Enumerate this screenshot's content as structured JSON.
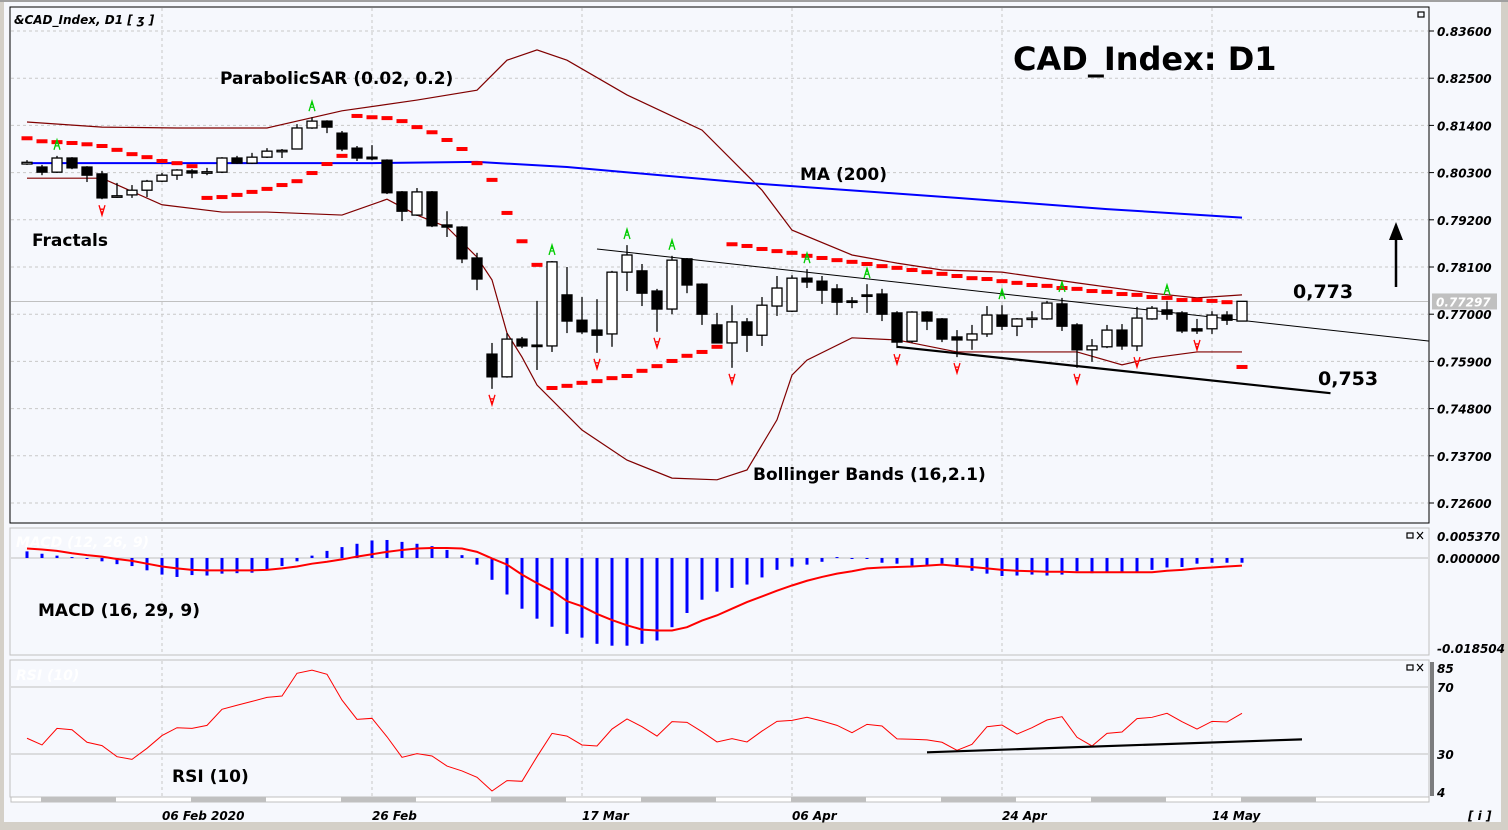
{
  "window": {
    "symbol_label": "&CAD_Index, D1 [ ʒ ]",
    "info_button": "[ i ]",
    "panel_icons": [
      "maximize-icon",
      "close-icon"
    ]
  },
  "annotations": {
    "title": "CAD_Index: D1",
    "parabolic_sar": "ParabolicSAR (0.02, 0.2)",
    "fractals": "Fractals",
    "ma": "MA (200)",
    "bollinger": "Bollinger Bands (16,2.1)",
    "resistance_level": "0,773",
    "support_level": "0,753",
    "macd": "MACD (16, 29, 9)",
    "macd_faint": "MACD (12, 26, 9)",
    "rsi": "RSI (10)",
    "rsi_faint": "RSI (10)",
    "forecast_arrow": "up-arrow"
  },
  "colors": {
    "bollinger": "#800000",
    "ma": "#0000ff",
    "sar": "#ff0000",
    "fractal_up": "#00cc00",
    "fractal_down": "#ff0000",
    "macd_hist": "#0000ff",
    "macd_signal": "#ff0000",
    "rsi": "#ff0000",
    "current_price_bg": "#c0c0c0"
  },
  "chart_data": {
    "type": "candlestick",
    "title": "CAD_Index: D1",
    "current_price": 0.77297,
    "current_price_label": "0.77297",
    "ylim": [
      0.7205,
      0.8398
    ],
    "yticks": [
      "0.83600",
      "0.82500",
      "0.81400",
      "0.80300",
      "0.79200",
      "0.78100",
      "0.77000",
      "0.75900",
      "0.74800",
      "0.73700",
      "0.72600"
    ],
    "xticks": [
      {
        "date": "2020-02-06",
        "label": "06 Feb 2020"
      },
      {
        "date": "2020-02-26",
        "label": "26 Feb"
      },
      {
        "date": "2020-03-17",
        "label": "17 Mar"
      },
      {
        "date": "2020-04-06",
        "label": "06 Apr"
      },
      {
        "date": "2020-04-24",
        "label": "24 Apr"
      },
      {
        "date": "2020-05-14",
        "label": "14 May"
      }
    ],
    "candles_format": [
      "date",
      "open",
      "high",
      "low",
      "close"
    ],
    "candles": [
      [
        "2020-01-24",
        0.805,
        0.8059,
        0.8048,
        0.8054
      ],
      [
        "2020-01-27",
        0.8043,
        0.8048,
        0.8024,
        0.8031
      ],
      [
        "2020-01-28",
        0.8031,
        0.8069,
        0.8029,
        0.8064
      ],
      [
        "2020-01-29",
        0.8064,
        0.8066,
        0.8038,
        0.8041
      ],
      [
        "2020-01-30",
        0.8043,
        0.8045,
        0.8008,
        0.8024
      ],
      [
        "2020-01-31",
        0.8027,
        0.8034,
        0.7968,
        0.7971
      ],
      [
        "2020-02-03",
        0.7974,
        0.8006,
        0.7971,
        0.7976
      ],
      [
        "2020-02-04",
        0.7978,
        0.8001,
        0.7971,
        0.7989
      ],
      [
        "2020-02-05",
        0.7989,
        0.8013,
        0.7973,
        0.801
      ],
      [
        "2020-02-06",
        0.801,
        0.8029,
        0.8008,
        0.8024
      ],
      [
        "2020-02-07",
        0.8024,
        0.8038,
        0.8013,
        0.8036
      ],
      [
        "2020-02-10",
        0.8034,
        0.8038,
        0.8017,
        0.8029
      ],
      [
        "2020-02-11",
        0.8031,
        0.8041,
        0.8024,
        0.8032
      ],
      [
        "2020-02-12",
        0.8031,
        0.8066,
        0.8029,
        0.8064
      ],
      [
        "2020-02-13",
        0.8064,
        0.8069,
        0.805,
        0.8052
      ],
      [
        "2020-02-14",
        0.8052,
        0.8076,
        0.805,
        0.8066
      ],
      [
        "2020-02-17",
        0.8066,
        0.8087,
        0.8064,
        0.808
      ],
      [
        "2020-02-18",
        0.808,
        0.8085,
        0.8064,
        0.8082
      ],
      [
        "2020-02-19",
        0.8085,
        0.8143,
        0.8085,
        0.8134
      ],
      [
        "2020-02-20",
        0.8134,
        0.8159,
        0.8132,
        0.815
      ],
      [
        "2020-02-21",
        0.815,
        0.8152,
        0.8122,
        0.8136
      ],
      [
        "2020-02-24",
        0.8122,
        0.8127,
        0.808,
        0.8085
      ],
      [
        "2020-02-25",
        0.8087,
        0.8092,
        0.8057,
        0.8064
      ],
      [
        "2020-02-26",
        0.8066,
        0.8094,
        0.8059,
        0.8062
      ],
      [
        "2020-02-27",
        0.8059,
        0.8061,
        0.798,
        0.7983
      ],
      [
        "2020-02-28",
        0.7985,
        0.7987,
        0.7917,
        0.794
      ],
      [
        "2020-03-02",
        0.7931,
        0.7994,
        0.7929,
        0.7985
      ],
      [
        "2020-03-03",
        0.7985,
        0.7987,
        0.7903,
        0.7906
      ],
      [
        "2020-03-04",
        0.7908,
        0.794,
        0.788,
        0.7903
      ],
      [
        "2020-03-05",
        0.7903,
        0.7905,
        0.7819,
        0.7829
      ],
      [
        "2020-03-06",
        0.7831,
        0.7843,
        0.7756,
        0.7782
      ],
      [
        "2020-03-09",
        0.7607,
        0.7633,
        0.7526,
        0.7554
      ],
      [
        "2020-03-10",
        0.7554,
        0.7656,
        0.7552,
        0.7642
      ],
      [
        "2020-03-11",
        0.7642,
        0.7647,
        0.7621,
        0.7626
      ],
      [
        "2020-03-12",
        0.7628,
        0.7731,
        0.757,
        0.7626
      ],
      [
        "2020-03-13",
        0.7626,
        0.7824,
        0.7612,
        0.7822
      ],
      [
        "2020-03-16",
        0.7745,
        0.781,
        0.7656,
        0.7684
      ],
      [
        "2020-03-17",
        0.7686,
        0.774,
        0.7654,
        0.7659
      ],
      [
        "2020-03-18",
        0.7663,
        0.7735,
        0.761,
        0.7651
      ],
      [
        "2020-03-19",
        0.7654,
        0.7801,
        0.7624,
        0.7798
      ],
      [
        "2020-03-20",
        0.7798,
        0.7861,
        0.7754,
        0.7838
      ],
      [
        "2020-03-23",
        0.7801,
        0.7817,
        0.7719,
        0.7749
      ],
      [
        "2020-03-24",
        0.7754,
        0.7759,
        0.7659,
        0.7712
      ],
      [
        "2020-03-25",
        0.7712,
        0.7836,
        0.77,
        0.7826
      ],
      [
        "2020-03-26",
        0.7829,
        0.7831,
        0.7749,
        0.7768
      ],
      [
        "2020-03-27",
        0.777,
        0.7772,
        0.7675,
        0.77
      ],
      [
        "2020-03-30",
        0.7675,
        0.7703,
        0.7633,
        0.7633
      ],
      [
        "2020-03-31",
        0.7633,
        0.7721,
        0.7575,
        0.7682
      ],
      [
        "2020-04-01",
        0.7682,
        0.7691,
        0.7612,
        0.7651
      ],
      [
        "2020-04-02",
        0.7651,
        0.774,
        0.7626,
        0.7721
      ],
      [
        "2020-04-03",
        0.7719,
        0.7789,
        0.7696,
        0.7761
      ],
      [
        "2020-04-06",
        0.7707,
        0.7791,
        0.7705,
        0.7784
      ],
      [
        "2020-04-07",
        0.7784,
        0.7805,
        0.7761,
        0.7775
      ],
      [
        "2020-04-08",
        0.7777,
        0.7789,
        0.7724,
        0.7756
      ],
      [
        "2020-04-09",
        0.7759,
        0.777,
        0.7698,
        0.7728
      ],
      [
        "2020-04-10",
        0.7731,
        0.774,
        0.7714,
        0.773
      ],
      [
        "2020-04-13",
        0.7745,
        0.777,
        0.7703,
        0.7743
      ],
      [
        "2020-04-14",
        0.7747,
        0.7759,
        0.7684,
        0.77
      ],
      [
        "2020-04-15",
        0.7703,
        0.7707,
        0.7621,
        0.7635
      ],
      [
        "2020-04-16",
        0.7637,
        0.7707,
        0.7633,
        0.7705
      ],
      [
        "2020-04-17",
        0.7705,
        0.7707,
        0.7663,
        0.7684
      ],
      [
        "2020-04-20",
        0.7689,
        0.7691,
        0.7635,
        0.7642
      ],
      [
        "2020-04-21",
        0.7647,
        0.7663,
        0.76,
        0.764
      ],
      [
        "2020-04-22",
        0.764,
        0.7675,
        0.7617,
        0.7654
      ],
      [
        "2020-04-23",
        0.7654,
        0.7719,
        0.7647,
        0.7698
      ],
      [
        "2020-04-24",
        0.7698,
        0.7721,
        0.7663,
        0.7672
      ],
      [
        "2020-04-27",
        0.7672,
        0.7691,
        0.7649,
        0.7689
      ],
      [
        "2020-04-28",
        0.7689,
        0.7707,
        0.7668,
        0.7691
      ],
      [
        "2020-04-29",
        0.7689,
        0.7731,
        0.7687,
        0.7726
      ],
      [
        "2020-04-30",
        0.7724,
        0.7738,
        0.7661,
        0.7672
      ],
      [
        "2020-05-01",
        0.7675,
        0.7679,
        0.7575,
        0.7617
      ],
      [
        "2020-05-04",
        0.7617,
        0.7642,
        0.7589,
        0.7626
      ],
      [
        "2020-05-05",
        0.7624,
        0.7675,
        0.7621,
        0.7663
      ],
      [
        "2020-05-06",
        0.7663,
        0.7677,
        0.7617,
        0.7626
      ],
      [
        "2020-05-07",
        0.7626,
        0.7717,
        0.7614,
        0.7691
      ],
      [
        "2020-05-08",
        0.7689,
        0.7719,
        0.7687,
        0.7714
      ],
      [
        "2020-05-11",
        0.771,
        0.7731,
        0.7687,
        0.77
      ],
      [
        "2020-05-12",
        0.7703,
        0.7707,
        0.7656,
        0.7661
      ],
      [
        "2020-05-13",
        0.7666,
        0.7689,
        0.7654,
        0.7661
      ],
      [
        "2020-05-14",
        0.7666,
        0.7707,
        0.7654,
        0.7698
      ],
      [
        "2020-05-15",
        0.7698,
        0.7707,
        0.7675,
        0.7686
      ],
      [
        "2020-05-18",
        0.7684,
        0.7728,
        0.7684,
        0.773
      ]
    ],
    "ma200": [
      [
        "2020-01-24",
        0.8052
      ],
      [
        "2020-02-26",
        0.8052
      ],
      [
        "2020-03-06",
        0.8055
      ],
      [
        "2020-03-16",
        0.8043
      ],
      [
        "2020-04-01",
        0.8006
      ],
      [
        "2020-04-21",
        0.7971
      ],
      [
        "2020-05-05",
        0.7945
      ],
      [
        "2020-05-18",
        0.7925
      ]
    ],
    "bollinger_upper": [
      [
        "2020-01-24",
        0.8148
      ],
      [
        "2020-01-31",
        0.8136
      ],
      [
        "2020-02-07",
        0.8134
      ],
      [
        "2020-02-17",
        0.8134
      ],
      [
        "2020-02-24",
        0.8174
      ],
      [
        "2020-03-02",
        0.8199
      ],
      [
        "2020-03-06",
        0.8222
      ],
      [
        "2020-03-10",
        0.8292
      ],
      [
        "2020-03-12",
        0.8316
      ],
      [
        "2020-03-16",
        0.8292
      ],
      [
        "2020-03-20",
        0.8211
      ],
      [
        "2020-03-27",
        0.8129
      ],
      [
        "2020-04-02",
        0.7989
      ],
      [
        "2020-04-06",
        0.7896
      ],
      [
        "2020-04-10",
        0.7838
      ],
      [
        "2020-04-15",
        0.7819
      ],
      [
        "2020-04-20",
        0.7803
      ],
      [
        "2020-04-24",
        0.7798
      ],
      [
        "2020-05-01",
        0.7773
      ],
      [
        "2020-05-08",
        0.7749
      ],
      [
        "2020-05-13",
        0.7738
      ],
      [
        "2020-05-18",
        0.7745
      ]
    ],
    "bollinger_lower": [
      [
        "2020-01-24",
        0.8017
      ],
      [
        "2020-01-31",
        0.8017
      ],
      [
        "2020-02-06",
        0.7955
      ],
      [
        "2020-02-12",
        0.7938
      ],
      [
        "2020-02-17",
        0.7938
      ],
      [
        "2020-02-24",
        0.7931
      ],
      [
        "2020-02-27",
        0.7968
      ],
      [
        "2020-03-02",
        0.7931
      ],
      [
        "2020-03-04",
        0.7903
      ],
      [
        "2020-03-06",
        0.7833
      ],
      [
        "2020-03-09",
        0.778
      ],
      [
        "2020-03-10",
        0.7656
      ],
      [
        "2020-03-11",
        0.76
      ],
      [
        "2020-03-12",
        0.7535
      ],
      [
        "2020-03-17",
        0.743
      ],
      [
        "2020-03-20",
        0.736
      ],
      [
        "2020-03-25",
        0.7318
      ],
      [
        "2020-03-30",
        0.7314
      ],
      [
        "2020-04-01",
        0.7337
      ],
      [
        "2020-04-03",
        0.7454
      ],
      [
        "2020-04-06",
        0.7558
      ],
      [
        "2020-04-07",
        0.7593
      ],
      [
        "2020-04-10",
        0.7645
      ],
      [
        "2020-04-15",
        0.764
      ],
      [
        "2020-04-21",
        0.7612
      ],
      [
        "2020-04-24",
        0.7612
      ],
      [
        "2020-05-01",
        0.7612
      ],
      [
        "2020-05-06",
        0.7582
      ],
      [
        "2020-05-08",
        0.7598
      ],
      [
        "2020-05-13",
        0.7612
      ],
      [
        "2020-05-18",
        0.7612
      ]
    ],
    "parabolic_sar": [
      0.811,
      0.8103,
      0.8101,
      0.8099,
      0.8096,
      0.8092,
      0.8083,
      0.8073,
      0.8066,
      0.8057,
      0.8052,
      0.8045,
      0.7971,
      0.7973,
      0.7978,
      0.7985,
      0.7992,
      0.8001,
      0.801,
      0.8029,
      0.805,
      0.8069,
      0.8162,
      0.8159,
      0.8157,
      0.815,
      0.8136,
      0.8124,
      0.8106,
      0.8085,
      0.8052,
      0.8013,
      0.7936,
      0.787,
      0.7815,
      0.7528,
      0.7533,
      0.754,
      0.7544,
      0.7551,
      0.7556,
      0.7568,
      0.7579,
      0.7591,
      0.7603,
      0.7612,
      0.7624,
      0.7863,
      0.7859,
      0.7852,
      0.7847,
      0.7843,
      0.7836,
      0.7831,
      0.7826,
      0.7822,
      0.7817,
      0.7812,
      0.7808,
      0.7803,
      0.7798,
      0.7794,
      0.7789,
      0.7784,
      0.7782,
      0.7777,
      0.7773,
      0.7768,
      0.7766,
      0.7761,
      0.7759,
      0.7754,
      0.7752,
      0.7747,
      0.7745,
      0.774,
      0.7738,
      0.7733,
      0.7733,
      0.7731,
      0.7728,
      0.7577
    ],
    "fractals_up": [
      "2020-01-28",
      "2020-02-20",
      "2020-03-13",
      "2020-03-20",
      "2020-03-25",
      "2020-04-07",
      "2020-04-13",
      "2020-04-24",
      "2020-04-30",
      "2020-05-11"
    ],
    "fractals_down": [
      "2020-01-31",
      "2020-03-09",
      "2020-03-18",
      "2020-03-24",
      "2020-03-31",
      "2020-04-15",
      "2020-04-21",
      "2020-05-01",
      "2020-05-07",
      "2020-05-13"
    ],
    "trendlines": [
      {
        "name": "resistance",
        "start": [
          "2020-03-18",
          0.7852
        ],
        "slope_per_bar": -0.000387,
        "bars": 55.5
      },
      {
        "name": "support",
        "start": [
          "2020-04-15",
          0.7624
        ],
        "slope_per_bar": -0.000374,
        "bars": 28.9
      }
    ],
    "macd": {
      "ylim": [
        -0.0185,
        0.00537
      ],
      "yticks": [
        "0.005370",
        "0.000000",
        "-0.018504"
      ],
      "histogram": [
        0.0014,
        0.0009,
        0.0005,
        0.0002,
        -0.0001,
        -0.0007,
        -0.0013,
        -0.0017,
        -0.0026,
        -0.0035,
        -0.004,
        -0.0036,
        -0.0037,
        -0.0033,
        -0.0032,
        -0.0031,
        -0.0026,
        -0.0017,
        -0.0007,
        0.0005,
        0.0015,
        0.0023,
        0.003,
        0.0037,
        0.0038,
        0.0034,
        0.003,
        0.0025,
        0.0017,
        0.0006,
        -0.0014,
        -0.0046,
        -0.0077,
        -0.0107,
        -0.0128,
        -0.0145,
        -0.016,
        -0.0168,
        -0.0181,
        -0.0185,
        -0.0185,
        -0.0181,
        -0.0174,
        -0.0146,
        -0.0116,
        -0.0088,
        -0.0071,
        -0.0063,
        -0.0056,
        -0.0041,
        -0.0025,
        -0.0018,
        -0.0014,
        -0.0008,
        0.0002,
        0.0,
        -0.0001,
        -0.001,
        -0.0012,
        -0.0016,
        -0.0015,
        -0.0012,
        -0.0019,
        -0.0027,
        -0.0033,
        -0.0038,
        -0.0037,
        -0.0035,
        -0.0037,
        -0.0035,
        -0.0028,
        -0.0032,
        -0.003,
        -0.003,
        -0.003,
        -0.0025,
        -0.002,
        -0.0019,
        -0.0012,
        -0.001,
        -0.001,
        -0.001
      ],
      "signal": [
        0.002,
        0.0018,
        0.0015,
        0.001,
        0.0006,
        0.0003,
        -0.0002,
        -0.0006,
        -0.0012,
        -0.0018,
        -0.0022,
        -0.0025,
        -0.0026,
        -0.0026,
        -0.0026,
        -0.0026,
        -0.0025,
        -0.0022,
        -0.0018,
        -0.0012,
        -0.0008,
        -0.0003,
        0.0003,
        0.0008,
        0.0013,
        0.0017,
        0.002,
        0.0021,
        0.0021,
        0.002,
        0.0013,
        -0.0001,
        -0.0014,
        -0.0035,
        -0.0053,
        -0.0069,
        -0.0091,
        -0.0102,
        -0.0118,
        -0.0131,
        -0.0142,
        -0.0151,
        -0.0153,
        -0.0153,
        -0.0146,
        -0.0132,
        -0.0121,
        -0.0107,
        -0.0093,
        -0.0081,
        -0.0069,
        -0.0058,
        -0.0048,
        -0.004,
        -0.0033,
        -0.0028,
        -0.0022,
        -0.002,
        -0.0019,
        -0.0018,
        -0.0016,
        -0.0014,
        -0.0017,
        -0.0019,
        -0.0022,
        -0.0025,
        -0.0027,
        -0.0028,
        -0.0029,
        -0.0029,
        -0.003,
        -0.003,
        -0.003,
        -0.003,
        -0.003,
        -0.003,
        -0.0027,
        -0.0025,
        -0.0022,
        -0.002,
        -0.0018,
        -0.0016
      ]
    },
    "rsi": {
      "ylim": [
        4,
        85
      ],
      "yticks": [
        "85",
        "70",
        "30",
        "4"
      ],
      "levels": [
        70,
        30
      ],
      "values": [
        39.4,
        35.4,
        45.3,
        44.5,
        37.0,
        35.0,
        28.4,
        26.8,
        33.4,
        41.0,
        45.7,
        45.3,
        47.1,
        56.7,
        59.1,
        61.4,
        63.8,
        64.6,
        78.2,
        80.1,
        77.6,
        62.2,
        50.7,
        51.3,
        40.3,
        28.0,
        30.2,
        28.8,
        22.8,
        19.9,
        16.1,
        7.9,
        14.1,
        13.7,
        28.4,
        42.3,
        40.7,
        35.4,
        34.8,
        44.9,
        50.9,
        46.3,
        40.7,
        49.3,
        48.9,
        43.3,
        37.2,
        39.2,
        37.2,
        43.7,
        49.5,
        50.1,
        51.9,
        49.7,
        47.1,
        42.7,
        47.7,
        46.7,
        39.0,
        38.8,
        38.4,
        37.0,
        32.2,
        35.8,
        46.3,
        47.3,
        41.9,
        45.7,
        50.3,
        52.3,
        40.0,
        34.8,
        42.3,
        43.1,
        51.1,
        51.9,
        54.3,
        49.3,
        44.9,
        49.5,
        49.1,
        54.3
      ],
      "trendline": {
        "start": [
          "2020-04-17",
          31.0
        ],
        "slope_per_bar": 0.31,
        "bars": 25
      }
    }
  }
}
